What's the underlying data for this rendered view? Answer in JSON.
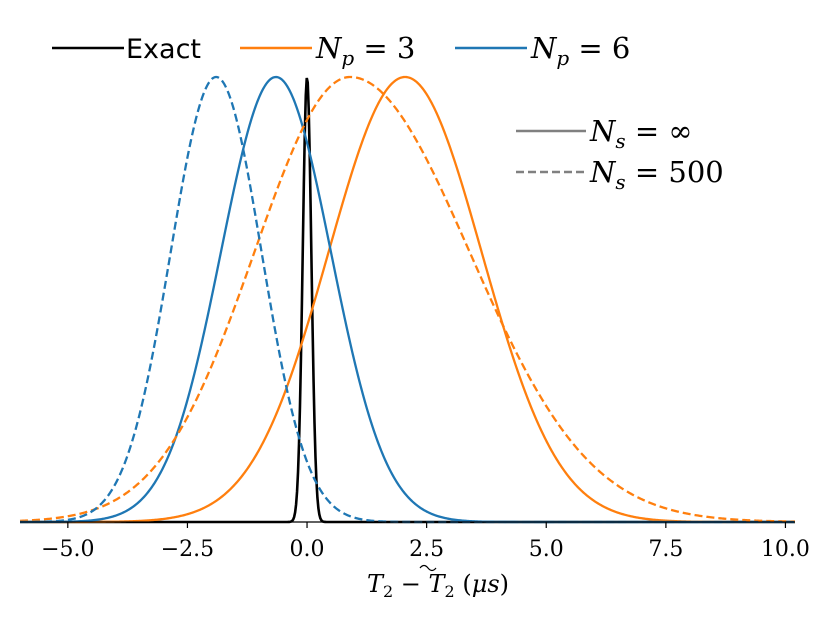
{
  "chart_data": {
    "type": "line",
    "xlabel": "T2 − T̃2 (μs)",
    "xlim": [
      -6.0,
      10.2
    ],
    "ylim": [
      0,
      1.0
    ],
    "grid": false,
    "x_ticks": [
      "−5.0",
      "−2.5",
      "0.0",
      "2.5",
      "5.0",
      "7.5",
      "10.0"
    ],
    "x_tick_values": [
      -5.0,
      -2.5,
      0.0,
      2.5,
      5.0,
      7.5,
      10.0
    ],
    "legend_top": {
      "placement": "top",
      "entries": [
        {
          "label": "Exact",
          "color": "#000000"
        },
        {
          "label_var": "N",
          "label_sub": "p",
          "label_rest": " = 3",
          "color": "#ff7f0e"
        },
        {
          "label_var": "N",
          "label_sub": "p",
          "label_rest": " = 6",
          "color": "#1f77b4"
        }
      ]
    },
    "legend_style": {
      "placement": "upper right",
      "entries": [
        {
          "label_var": "N",
          "label_sub": "s",
          "label_rest": " = ∞",
          "linestyle": "solid",
          "color": "#808080"
        },
        {
          "label_var": "N",
          "label_sub": "s",
          "label_rest": " = 500",
          "linestyle": "dashed",
          "color": "#808080"
        }
      ]
    },
    "series": [
      {
        "name": "Exact",
        "color": "#000000",
        "linestyle": "solid",
        "kind": "gaussian",
        "mean": 0.0,
        "sigma": 0.09,
        "peak": 1.0
      },
      {
        "name": "N_p = 3, N_s = ∞",
        "color": "#ff7f0e",
        "linestyle": "solid",
        "kind": "gaussian",
        "mean": 2.05,
        "sigma": 1.6,
        "peak": 1.0
      },
      {
        "name": "N_p = 6, N_s = ∞",
        "color": "#1f77b4",
        "linestyle": "solid",
        "kind": "gaussian",
        "mean": -0.65,
        "sigma": 1.15,
        "peak": 1.0
      },
      {
        "name": "N_p = 3, N_s = 500",
        "color": "#ff7f0e",
        "linestyle": "dashed",
        "kind": "skew",
        "mean": 0.9,
        "sigma_left": 2.0,
        "sigma_right": 2.5,
        "peak": 1.0
      },
      {
        "name": "N_p = 6, N_s = 500",
        "color": "#1f77b4",
        "linestyle": "dashed",
        "kind": "skew",
        "mean": -1.9,
        "sigma_left": 0.95,
        "sigma_right": 0.95,
        "peak": 1.0
      }
    ]
  }
}
